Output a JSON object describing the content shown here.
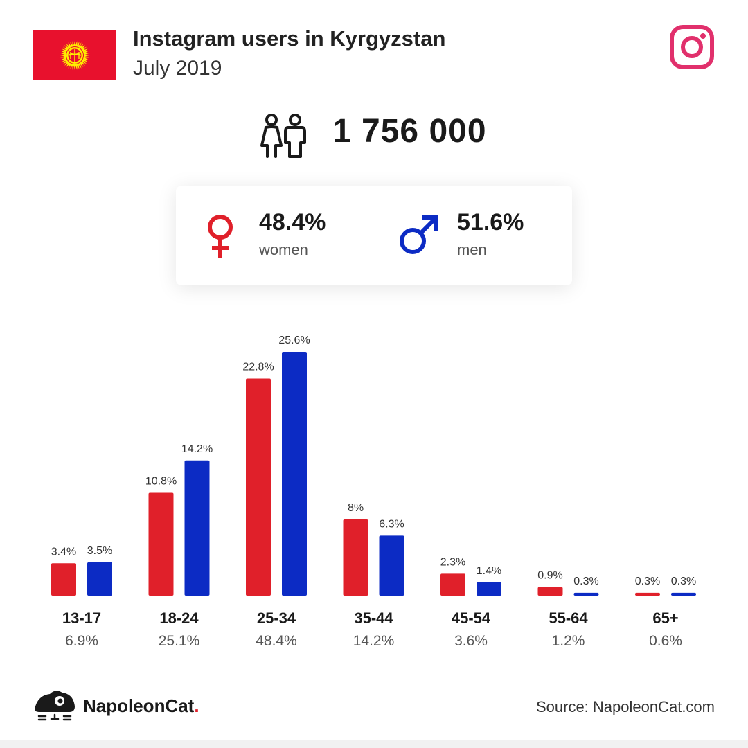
{
  "header": {
    "title": "Instagram users in Kyrgyzstan",
    "subtitle": "July 2019"
  },
  "icons": {
    "flag": "kyrgyzstan-flag-icon",
    "platform": "instagram-icon",
    "people": "people-icon",
    "female": "venus-icon",
    "male": "mars-icon",
    "logo": "napoleoncat-logo-icon"
  },
  "summary": {
    "total_users": "1 756 000",
    "women_pct": "48.4%",
    "women_label": "women",
    "men_pct": "51.6%",
    "men_label": "men"
  },
  "colors": {
    "women": "#e0202a",
    "men": "#0c2bc4",
    "instagram": "#e1306c",
    "flag_red": "#e8112d",
    "flag_sun": "#ffef00"
  },
  "chart_data": {
    "type": "bar",
    "categories": [
      "13-17",
      "18-24",
      "25-34",
      "35-44",
      "45-54",
      "55-64",
      "65+"
    ],
    "category_totals": [
      "6.9%",
      "25.1%",
      "48.4%",
      "14.2%",
      "3.6%",
      "1.2%",
      "0.6%"
    ],
    "series": [
      {
        "name": "women",
        "values": [
          3.4,
          10.8,
          22.8,
          8,
          2.3,
          0.9,
          0.3
        ],
        "labels": [
          "3.4%",
          "10.8%",
          "22.8%",
          "8%",
          "2.3%",
          "0.9%",
          "0.3%"
        ]
      },
      {
        "name": "men",
        "values": [
          3.5,
          14.2,
          25.6,
          6.3,
          1.4,
          0.3,
          0.3
        ],
        "labels": [
          "3.5%",
          "14.2%",
          "25.6%",
          "6.3%",
          "1.4%",
          "0.3%",
          "0.3%"
        ]
      }
    ],
    "ylim": [
      0,
      25.6
    ],
    "grid": false,
    "legend": "none"
  },
  "footer": {
    "brand_name": "NapoleonCat",
    "brand_dot": ".",
    "source": "Source: NapoleonCat.com"
  }
}
